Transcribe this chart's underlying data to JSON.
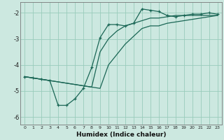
{
  "xlabel": "Humidex (Indice chaleur)",
  "background_color": "#cce8e0",
  "grid_color": "#99ccbb",
  "line_color": "#1a6655",
  "xlim": [
    -0.5,
    23.5
  ],
  "ylim": [
    -6.3,
    -1.6
  ],
  "xticks": [
    0,
    1,
    2,
    3,
    4,
    5,
    6,
    7,
    8,
    9,
    10,
    11,
    12,
    13,
    14,
    15,
    16,
    17,
    18,
    19,
    20,
    21,
    22,
    23
  ],
  "yticks": [
    -6,
    -5,
    -4,
    -3,
    -2
  ],
  "line1_x": [
    0,
    1,
    2,
    3,
    4,
    5,
    6,
    7,
    8,
    9,
    10,
    11,
    12,
    13,
    14,
    15,
    16,
    17,
    18,
    19,
    20,
    21,
    22,
    23
  ],
  "line1_y": [
    -4.45,
    -4.5,
    -4.55,
    -4.6,
    -4.65,
    -4.7,
    -4.75,
    -4.8,
    -4.85,
    -4.9,
    -4.0,
    -3.6,
    -3.2,
    -2.9,
    -2.6,
    -2.5,
    -2.5,
    -2.4,
    -2.35,
    -2.3,
    -2.25,
    -2.2,
    -2.15,
    -2.1
  ],
  "line2_x": [
    0,
    1,
    2,
    3,
    4,
    5,
    6,
    7,
    8,
    9,
    10,
    11,
    12,
    13,
    14,
    15,
    16,
    17,
    18,
    19,
    20,
    21,
    22,
    23
  ],
  "line2_y": [
    -4.45,
    -4.5,
    -4.55,
    -4.6,
    -5.55,
    -5.55,
    -5.3,
    -4.9,
    -4.1,
    -2.95,
    -2.45,
    -2.45,
    -2.5,
    -2.4,
    -1.85,
    -1.9,
    -1.95,
    -2.1,
    -2.15,
    -2.1,
    -2.05,
    -2.05,
    -2.0,
    -2.05
  ],
  "line3_x": [
    0,
    1,
    2,
    3,
    4,
    5,
    6,
    7,
    8,
    9,
    10,
    11,
    12,
    13,
    14,
    15,
    16,
    17,
    18,
    19,
    20,
    21,
    22,
    23
  ],
  "line3_y": [
    -4.45,
    -4.5,
    -4.55,
    -4.6,
    -4.65,
    -4.7,
    -4.75,
    -4.8,
    -4.85,
    -3.5,
    -3.0,
    -2.7,
    -2.5,
    -2.4,
    -2.3,
    -2.2,
    -2.2,
    -2.15,
    -2.1,
    -2.1,
    -2.1,
    -2.1,
    -2.1,
    -2.1
  ]
}
